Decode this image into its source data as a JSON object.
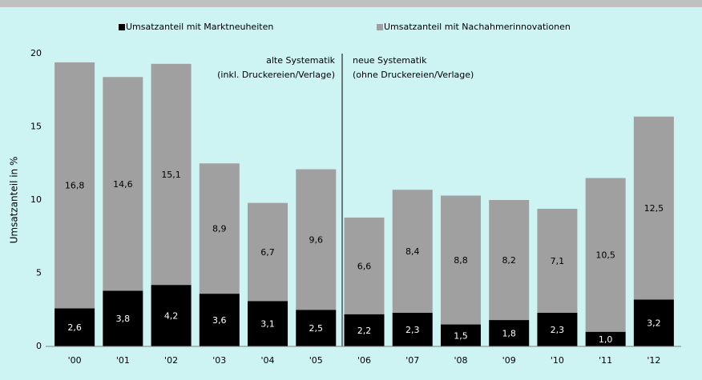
{
  "chart_data": {
    "type": "stacked_bar",
    "categories": [
      "'00",
      "'01",
      "'02",
      "'03",
      "'04",
      "'05",
      "'06",
      "'07",
      "'08",
      "'09",
      "'10",
      "'11",
      "'12"
    ],
    "series": [
      {
        "name": "Umsatzanteil mit Marktneuheiten",
        "color": "#000000",
        "values": [
          2.6,
          3.8,
          4.2,
          3.6,
          3.1,
          2.5,
          2.2,
          2.3,
          1.5,
          1.8,
          2.3,
          1.0,
          3.2
        ],
        "value_labels": [
          "2,6",
          "3,8",
          "4,2",
          "3,6",
          "3,1",
          "2,5",
          "2,2",
          "2,3",
          "1,5",
          "1,8",
          "2,3",
          "1,0",
          "3,2"
        ]
      },
      {
        "name": "Umsatzanteil mit Nachahmerinnovationen",
        "color": "#a0a0a0",
        "values": [
          16.8,
          14.6,
          15.1,
          8.9,
          6.7,
          9.6,
          6.6,
          8.4,
          8.8,
          8.2,
          7.1,
          10.5,
          12.5
        ],
        "value_labels": [
          "16,8",
          "14,6",
          "15,1",
          "8,9",
          "6,7",
          "9,6",
          "6,6",
          "8,4",
          "8,8",
          "8,2",
          "7,1",
          "10,5",
          "12,5"
        ]
      }
    ],
    "y_label": "Umsatzanteil in %",
    "ylim": [
      0,
      20
    ],
    "yticks": [
      0,
      5,
      10,
      15,
      20
    ],
    "annotations": [
      "alte Systematik",
      "(inkl. Druckereien/Verlage)",
      "neue Systematik",
      "(ohne Druckereien/Verlage)"
    ]
  }
}
